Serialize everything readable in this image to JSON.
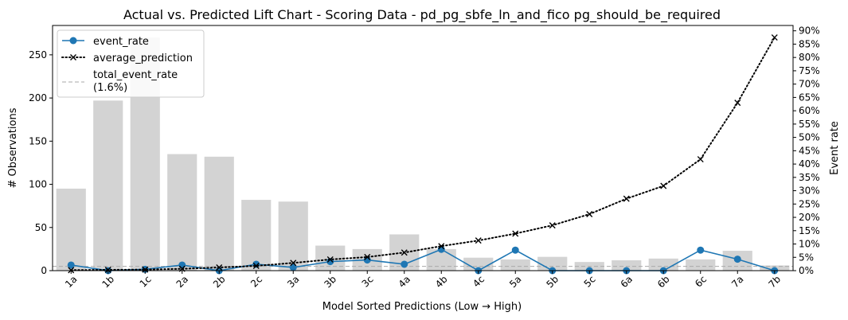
{
  "chart_data": {
    "type": "bar",
    "title": "Actual vs. Predicted Lift Chart - Scoring Data - pd_pg_sbfe_ln_and_fico pg_should_be_required",
    "xlabel": "Model Sorted Predictions (Low → High)",
    "ylabel_left": "# Observations",
    "ylabel_right": "Event rate",
    "categories": [
      "1a",
      "1b",
      "1c",
      "2a",
      "2b",
      "2c",
      "3a",
      "3b",
      "3c",
      "4a",
      "4b",
      "4c",
      "5a",
      "5b",
      "5c",
      "6a",
      "6b",
      "6c",
      "7a",
      "7b"
    ],
    "ylim_left": [
      0,
      284
    ],
    "ylim_right": [
      0,
      0.92
    ],
    "yticks_left": [
      0,
      50,
      100,
      150,
      200,
      250
    ],
    "yticks_right": [
      0,
      0.05,
      0.1,
      0.15,
      0.2,
      0.25,
      0.3,
      0.35,
      0.4,
      0.45,
      0.5,
      0.55,
      0.6,
      0.65,
      0.7,
      0.75,
      0.8,
      0.85,
      0.9
    ],
    "yticks_right_labels": [
      "0%",
      "5%",
      "10%",
      "15%",
      "20%",
      "25%",
      "30%",
      "35%",
      "40%",
      "45%",
      "50%",
      "55%",
      "60%",
      "65%",
      "70%",
      "75%",
      "80%",
      "85%",
      "90%"
    ],
    "observations": [
      95,
      197,
      270,
      135,
      132,
      82,
      80,
      29,
      25,
      42,
      25,
      15,
      13,
      16,
      10,
      12,
      14,
      13,
      23,
      6
    ],
    "series": [
      {
        "name": "event_rate",
        "axis": "right",
        "color": "#1f77b4",
        "style": "solid-circle",
        "values": [
          0.021,
          0.0,
          0.005,
          0.021,
          0.0,
          0.024,
          0.012,
          0.034,
          0.04,
          0.024,
          0.08,
          0.0,
          0.077,
          0.0,
          0.0,
          0.0,
          0.0,
          0.077,
          0.043,
          0.0
        ]
      },
      {
        "name": "average_prediction",
        "axis": "right",
        "color": "#000000",
        "style": "dotted-x",
        "values": [
          0.002,
          0.003,
          0.004,
          0.007,
          0.012,
          0.018,
          0.029,
          0.042,
          0.051,
          0.068,
          0.092,
          0.113,
          0.139,
          0.17,
          0.212,
          0.27,
          0.318,
          0.418,
          0.63,
          0.875
        ]
      }
    ],
    "reference_line": {
      "name": "total_event_rate\n(1.6%)",
      "label_line1": "total_event_rate",
      "label_line2": "(1.6%)",
      "value": 0.016,
      "axis": "right",
      "color": "#aaaaaa",
      "style": "dashed"
    },
    "bar_color": "#d3d3d3",
    "legend_position": "top-left",
    "grid": false
  }
}
